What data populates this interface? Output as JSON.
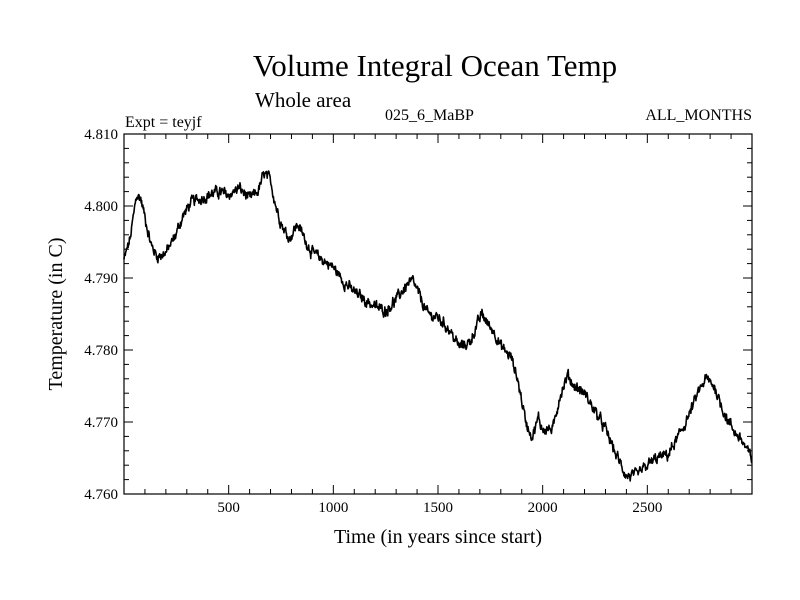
{
  "chart_data": {
    "type": "line",
    "title": "Volume Integral Ocean Temp",
    "subtitle": "Whole area",
    "annotations": {
      "experiment": "Expt = teyjf",
      "period": "025_6_MaBP",
      "months": "ALL_MONTHS"
    },
    "xlabel": "Time (in years since start)",
    "ylabel": "Temperature (in C)",
    "xlim": [
      0,
      3000
    ],
    "ylim": [
      4.76,
      4.81
    ],
    "x_ticks": [
      500,
      1000,
      1500,
      2000,
      2500
    ],
    "x_tick_labels": [
      "500",
      "1000",
      "1500",
      "2000",
      "2500"
    ],
    "y_ticks": [
      4.76,
      4.77,
      4.78,
      4.79,
      4.8,
      4.81
    ],
    "y_tick_labels": [
      "4.760",
      "4.770",
      "4.780",
      "4.790",
      "4.800",
      "4.810"
    ],
    "grid": false,
    "color": "#000000",
    "series": [
      {
        "name": "Volume integral ocean temperature",
        "x": [
          0,
          30,
          60,
          80,
          100,
          130,
          160,
          200,
          240,
          280,
          320,
          360,
          400,
          450,
          500,
          550,
          600,
          640,
          670,
          700,
          730,
          760,
          790,
          830,
          870,
          900,
          950,
          1000,
          1050,
          1100,
          1150,
          1200,
          1250,
          1300,
          1350,
          1380,
          1420,
          1450,
          1500,
          1550,
          1600,
          1650,
          1680,
          1710,
          1740,
          1770,
          1800,
          1850,
          1880,
          1920,
          1950,
          1980,
          2000,
          2050,
          2080,
          2120,
          2150,
          2200,
          2250,
          2300,
          2350,
          2400,
          2450,
          2500,
          2550,
          2600,
          2650,
          2700,
          2750,
          2780,
          2820,
          2850,
          2880,
          2920,
          2950,
          3000
        ],
        "values": [
          4.7925,
          4.7955,
          4.8015,
          4.801,
          4.7985,
          4.7945,
          4.793,
          4.7935,
          4.7955,
          4.7985,
          4.8005,
          4.801,
          4.8015,
          4.802,
          4.8015,
          4.8025,
          4.801,
          4.802,
          4.8045,
          4.8035,
          4.7995,
          4.797,
          4.7955,
          4.7975,
          4.795,
          4.7935,
          4.7925,
          4.7915,
          4.7895,
          4.788,
          4.787,
          4.786,
          4.7855,
          4.787,
          4.789,
          4.7895,
          4.787,
          4.785,
          4.7845,
          4.783,
          4.7805,
          4.781,
          4.783,
          4.785,
          4.7835,
          4.7825,
          4.7805,
          4.779,
          4.776,
          4.77,
          4.768,
          4.7705,
          4.769,
          4.769,
          4.7735,
          4.7765,
          4.775,
          4.774,
          4.7715,
          4.769,
          4.7655,
          4.7625,
          4.7625,
          4.764,
          4.765,
          4.7655,
          4.768,
          4.771,
          4.7745,
          4.776,
          4.775,
          4.7725,
          4.7705,
          4.7685,
          4.7675,
          4.7648
        ]
      }
    ]
  }
}
